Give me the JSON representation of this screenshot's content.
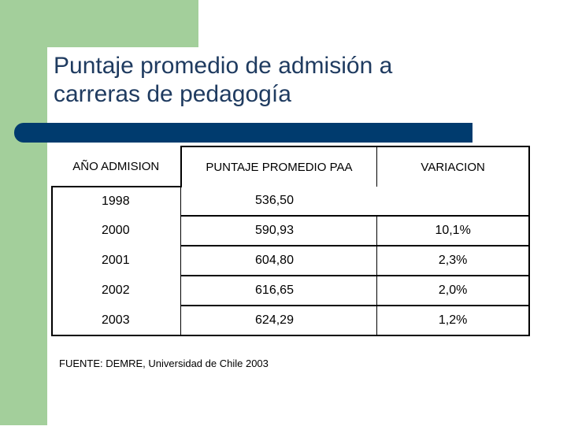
{
  "slide": {
    "title_line1": "Puntaje promedio de admisión a",
    "title_line2": "carreras de pedagogía",
    "source": "FUENTE: DEMRE, Universidad de Chile 2003",
    "colors": {
      "green": "#a3cf9b",
      "bar": "#003b6e",
      "title": "#1f3b60"
    }
  },
  "table": {
    "headers": [
      "AÑO ADMISION",
      "PUNTAJE PROMEDIO PAA",
      "VARIACION"
    ],
    "rows": [
      {
        "year": "1998",
        "score": "536,50",
        "variation": ""
      },
      {
        "year": "2000",
        "score": "590,93",
        "variation": "10,1%"
      },
      {
        "year": "2001",
        "score": "604,80",
        "variation": "2,3%"
      },
      {
        "year": "2002",
        "score": "616,65",
        "variation": "2,0%"
      },
      {
        "year": "2003",
        "score": "624,29",
        "variation": "1,2%"
      }
    ]
  }
}
